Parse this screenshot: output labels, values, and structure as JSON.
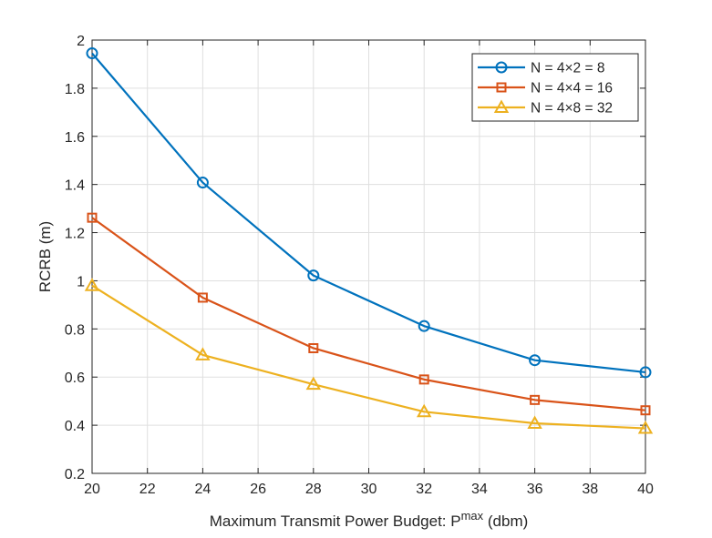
{
  "chart_data": {
    "type": "line",
    "title": "",
    "xlabel_main": "Maximum Transmit Power Budget: P",
    "xlabel_sup": "max",
    "xlabel_tail": " (dbm)",
    "ylabel": "RCRB (m)",
    "xlim": [
      20,
      40
    ],
    "ylim": [
      0.2,
      2
    ],
    "xticks": [
      20,
      22,
      24,
      26,
      28,
      30,
      32,
      34,
      36,
      38,
      40
    ],
    "yticks": [
      0.2,
      0.4,
      0.6,
      0.8,
      1,
      1.2,
      1.4,
      1.6,
      1.8,
      2
    ],
    "ytick_labels": [
      "0.2",
      "0.4",
      "0.6",
      "0.8",
      "1",
      "1.2",
      "1.4",
      "1.6",
      "1.8",
      "2"
    ],
    "grid": true,
    "legend_position": "top-right",
    "x": [
      20,
      24,
      28,
      32,
      36,
      40
    ],
    "series": [
      {
        "name": "N = 4×2 = 8",
        "color": "#0072BD",
        "marker": "circle",
        "values": [
          1.945,
          1.408,
          1.022,
          0.812,
          0.67,
          0.62
        ]
      },
      {
        "name": "N = 4×4 = 16",
        "color": "#D95319",
        "marker": "square",
        "values": [
          1.262,
          0.93,
          0.72,
          0.59,
          0.505,
          0.462
        ]
      },
      {
        "name": "N = 4×8 = 32",
        "color": "#EDB120",
        "marker": "triangle",
        "values": [
          0.98,
          0.692,
          0.57,
          0.456,
          0.408,
          0.387
        ]
      }
    ]
  }
}
